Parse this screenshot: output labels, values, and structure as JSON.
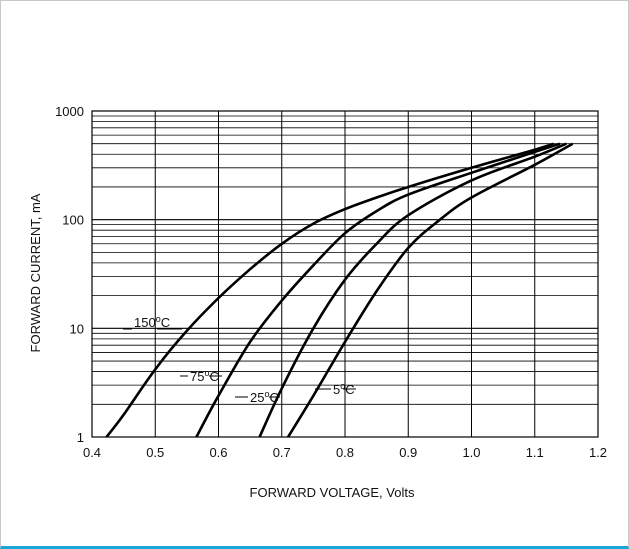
{
  "chart_data": {
    "type": "line",
    "xlabel": "FORWARD  VOLTAGE, Volts",
    "ylabel": "FORWARD CURRENT, mA",
    "xlim": [
      0.4,
      1.2
    ],
    "ylim": [
      1,
      1000
    ],
    "y_scale": "log",
    "grid": true,
    "x_ticks": [
      "0.4",
      "0.5",
      "0.6",
      "0.7",
      "0.8",
      "0.9",
      "1.0",
      "1.1",
      "1.2"
    ],
    "y_ticks": [
      "1",
      "10",
      "100",
      "1000"
    ],
    "line_color": "#000000",
    "series": [
      {
        "name": "150°C",
        "label_main": "150",
        "x": [
          0.423,
          0.45,
          0.5,
          0.55,
          0.6,
          0.65,
          0.7,
          0.75,
          0.8,
          0.85,
          0.9,
          1.0,
          1.1,
          1.13
        ],
        "y": [
          1,
          1.6,
          4.2,
          9.5,
          19,
          35,
          60,
          92,
          125,
          160,
          200,
          300,
          440,
          500
        ]
      },
      {
        "name": "75°C",
        "label_main": "75",
        "x": [
          0.565,
          0.6,
          0.65,
          0.7,
          0.75,
          0.8,
          0.85,
          0.9,
          1.0,
          1.1,
          1.14
        ],
        "y": [
          1,
          2.4,
          7.5,
          18,
          38,
          75,
          120,
          170,
          270,
          420,
          500
        ]
      },
      {
        "name": "25°C",
        "label_main": "25",
        "x": [
          0.665,
          0.7,
          0.75,
          0.8,
          0.85,
          0.9,
          1.0,
          1.1,
          1.15
        ],
        "y": [
          1,
          2.8,
          10,
          28,
          60,
          110,
          230,
          380,
          500
        ]
      },
      {
        "name": "5°C",
        "label_main": "5",
        "x": [
          0.71,
          0.75,
          0.8,
          0.85,
          0.9,
          0.95,
          1.0,
          1.1,
          1.16
        ],
        "y": [
          1,
          2.4,
          7.5,
          22,
          55,
          100,
          160,
          320,
          500
        ]
      }
    ]
  }
}
